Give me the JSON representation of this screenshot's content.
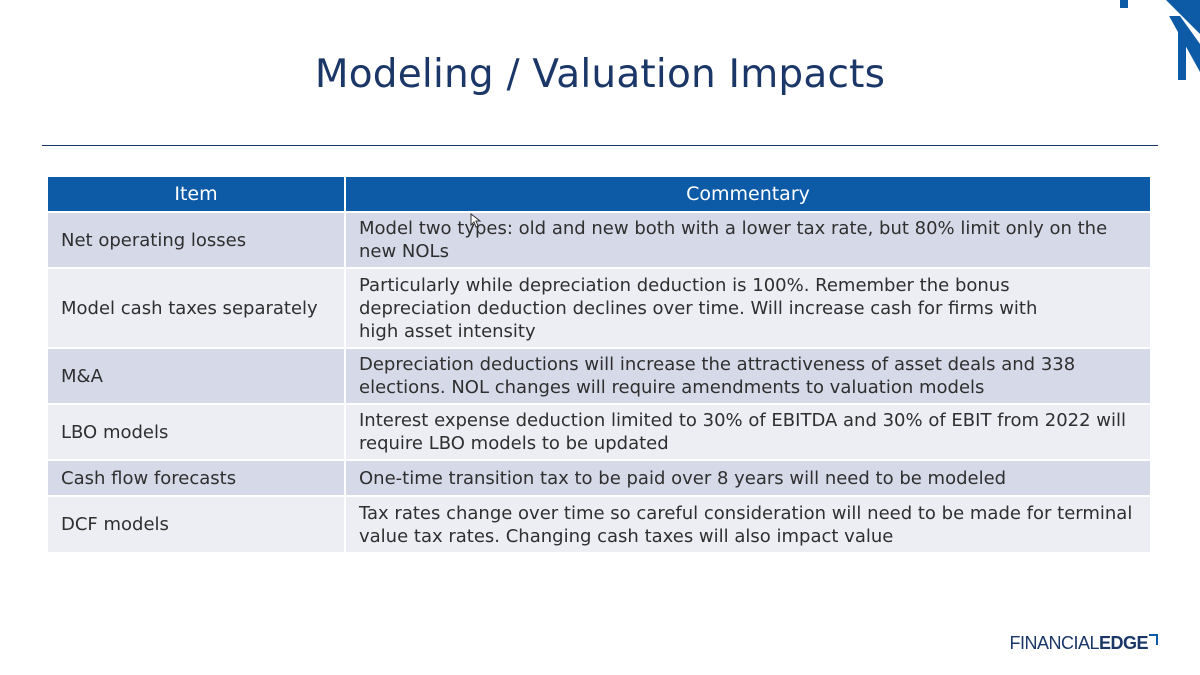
{
  "slide": {
    "title": "Modeling / Valuation Impacts"
  },
  "table": {
    "headers": [
      "Item",
      "Commentary"
    ],
    "rows": [
      {
        "item": "Net operating losses",
        "commentary": "Model two types:  old and new both with a lower tax rate, but 80% limit only on the new NOLs"
      },
      {
        "item": "Model cash taxes separately",
        "commentary": "Particularly while depreciation deduction is 100%. Remember the bonus depreciation deduction declines over time. Will increase cash for firms with high asset intensity"
      },
      {
        "item": "M&A",
        "commentary": "Depreciation deductions will increase the attractiveness of asset deals and 338 elections. NOL changes will require amendments to valuation models"
      },
      {
        "item": "LBO models",
        "commentary": "Interest expense deduction limited to 30% of EBITDA and 30% of EBIT from 2022 will require LBO models to be updated"
      },
      {
        "item": "Cash flow forecasts",
        "commentary": "One-time transition tax to be paid over 8 years will need to be modeled"
      },
      {
        "item": "DCF models",
        "commentary": "Tax rates change over time so careful consideration will need to be made for terminal value tax rates. Changing cash taxes will also impact value"
      }
    ]
  },
  "brand": {
    "part1": "FINANCIAL",
    "part2": "EDGE"
  },
  "colors": {
    "title": "#1b3768",
    "header_bg": "#0d5aa7",
    "row_dark": "#d6d9e8",
    "row_light": "#eceef4"
  }
}
